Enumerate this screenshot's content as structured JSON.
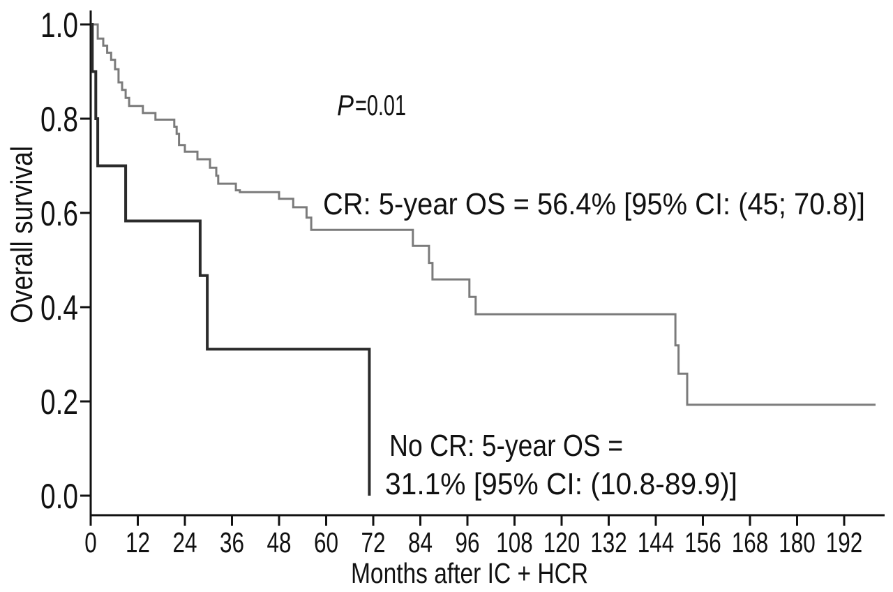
{
  "figure": {
    "background": "#ffffff",
    "text_color": "#111111",
    "axis_color": "#111111"
  },
  "chart_data": {
    "type": "line",
    "chart_style": "kaplan-meier-step",
    "title": "",
    "xlabel": "Months after IC + HCR",
    "ylabel": "Overall survival",
    "xlim": [
      0,
      202
    ],
    "ylim": [
      0,
      1.0
    ],
    "x_ticks": [
      0,
      12,
      24,
      36,
      48,
      60,
      72,
      84,
      96,
      108,
      120,
      132,
      144,
      156,
      168,
      180,
      192
    ],
    "y_ticks": [
      0.0,
      0.2,
      0.4,
      0.6,
      0.8,
      1.0
    ],
    "grid": false,
    "legend_position": "none",
    "annotations": {
      "p_italic": "P",
      "p_rest": "=0.01",
      "cr_label": "CR: 5-year OS = 56.4% [95% CI: (45; 70.8)]",
      "no_cr_label_line1": "No CR: 5-year OS =",
      "no_cr_label_line2": "31.1% [95% CI: (10.8-89.9)]"
    },
    "series": [
      {
        "name": "CR",
        "color": "#7b7b7b",
        "line_width": 3,
        "end_month": 200,
        "steps": [
          [
            0,
            1.0
          ],
          [
            1.8,
            0.97
          ],
          [
            3.2,
            0.955
          ],
          [
            4.2,
            0.94
          ],
          [
            5.2,
            0.925
          ],
          [
            6.2,
            0.905
          ],
          [
            7.1,
            0.877
          ],
          [
            8.0,
            0.861
          ],
          [
            8.9,
            0.844
          ],
          [
            9.8,
            0.827
          ],
          [
            13.3,
            0.812
          ],
          [
            16.5,
            0.798
          ],
          [
            21.3,
            0.783
          ],
          [
            21.9,
            0.768
          ],
          [
            22.5,
            0.744
          ],
          [
            24.0,
            0.73
          ],
          [
            27.2,
            0.714
          ],
          [
            30.4,
            0.696
          ],
          [
            32.0,
            0.679
          ],
          [
            32.5,
            0.662
          ],
          [
            37.0,
            0.648
          ],
          [
            38.0,
            0.644
          ],
          [
            48.0,
            0.63
          ],
          [
            51.6,
            0.612
          ],
          [
            55.0,
            0.59
          ],
          [
            56.2,
            0.564
          ],
          [
            82.1,
            0.53
          ],
          [
            86.2,
            0.494
          ],
          [
            87.1,
            0.459
          ],
          [
            96.5,
            0.422
          ],
          [
            98.1,
            0.385
          ],
          [
            149.0,
            0.319
          ],
          [
            149.8,
            0.259
          ],
          [
            152.0,
            0.193
          ]
        ]
      },
      {
        "name": "No CR",
        "color": "#2b2b2b",
        "line_width": 4,
        "end_month": 71,
        "steps": [
          [
            0,
            1.0
          ],
          [
            0.4,
            0.9
          ],
          [
            1.3,
            0.8
          ],
          [
            1.8,
            0.7
          ],
          [
            8.9,
            0.583
          ],
          [
            27.9,
            0.467
          ],
          [
            29.7,
            0.311
          ],
          [
            71.0,
            0.0
          ]
        ]
      }
    ]
  }
}
